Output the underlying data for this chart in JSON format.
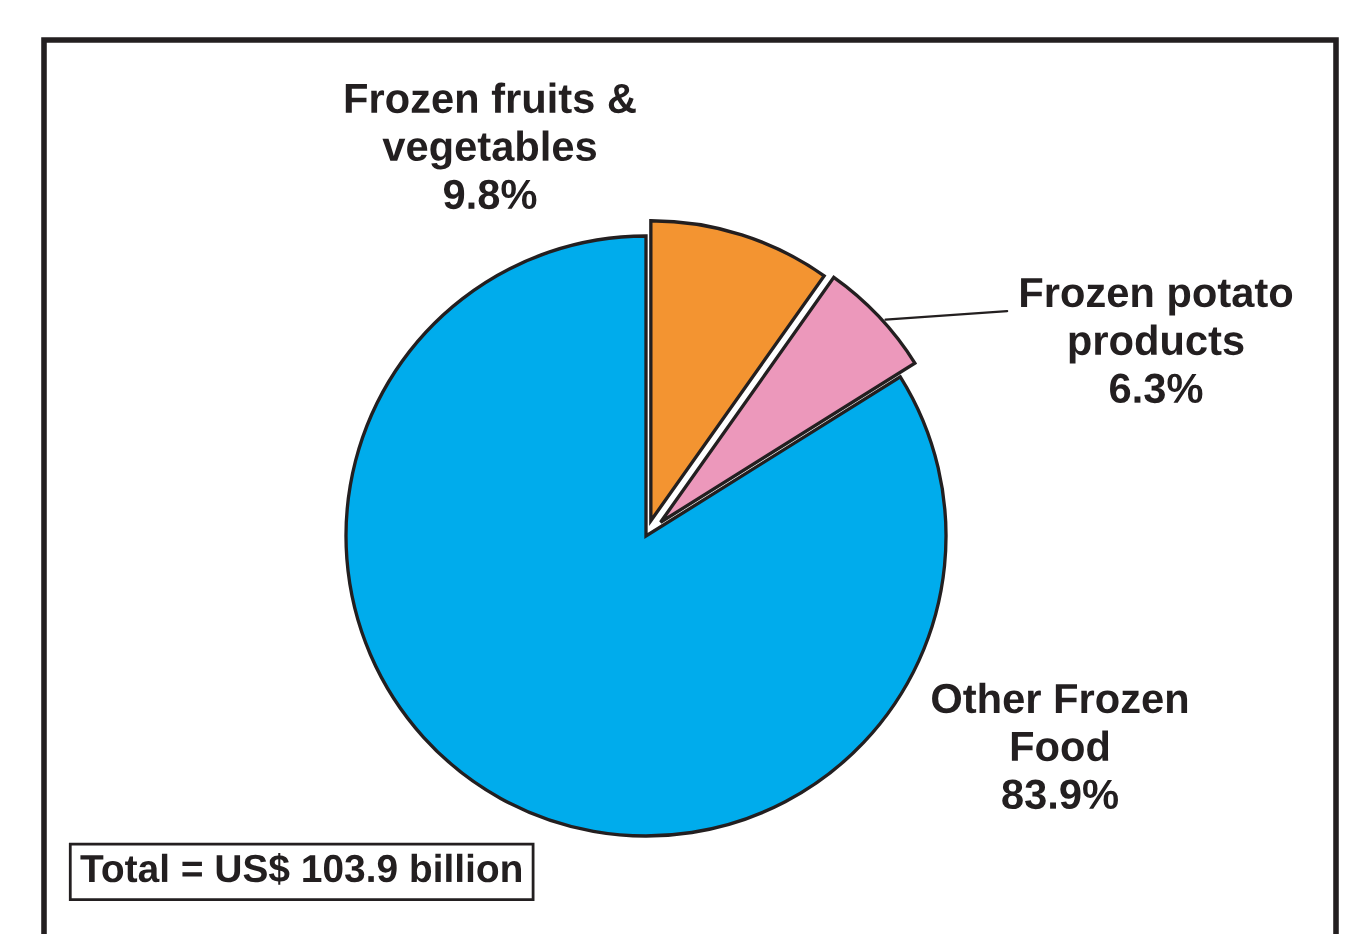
{
  "chart_data": {
    "type": "pie",
    "categories": [
      "Frozen fruits &\nvegetables",
      "Frozen potato\nproducts",
      "Other Frozen\nFood"
    ],
    "values": [
      9.8,
      6.3,
      83.9
    ],
    "colors": [
      "#f39431",
      "#ec98bb",
      "#00acec"
    ],
    "value_labels": [
      "9.8%",
      "6.3%",
      "83.9%"
    ],
    "annotations": [
      "Total = US$ 103.9 billion"
    ]
  }
}
